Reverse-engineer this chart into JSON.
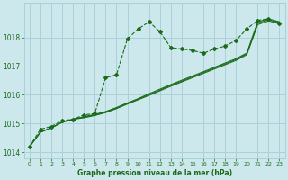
{
  "title": "Graphe pression niveau de la mer (hPa)",
  "background_color": "#cce8ed",
  "grid_color": "#a8cdd4",
  "line_color": "#1a6b1a",
  "xlim": [
    -0.5,
    23.5
  ],
  "ylim": [
    1013.8,
    1019.2
  ],
  "yticks": [
    1014,
    1015,
    1016,
    1017,
    1018
  ],
  "xticks": [
    0,
    1,
    2,
    3,
    4,
    5,
    6,
    7,
    8,
    9,
    10,
    11,
    12,
    13,
    14,
    15,
    16,
    17,
    18,
    19,
    20,
    21,
    22,
    23
  ],
  "series1_x": [
    0,
    1,
    2,
    3,
    4,
    5,
    6,
    7,
    8,
    9,
    10,
    11,
    12,
    13,
    14,
    15,
    16,
    17,
    18,
    19,
    20,
    21,
    22,
    23
  ],
  "series1_y": [
    1014.2,
    1014.8,
    1014.9,
    1015.1,
    1015.15,
    1015.3,
    1015.35,
    1016.6,
    1016.7,
    1017.95,
    1018.3,
    1018.55,
    1018.2,
    1017.65,
    1017.6,
    1017.55,
    1017.45,
    1017.6,
    1017.7,
    1017.9,
    1018.3,
    1018.6,
    1018.65,
    1018.5
  ],
  "series2_x": [
    0,
    1,
    2,
    3,
    4,
    5,
    6,
    7,
    8,
    9,
    10,
    11,
    12,
    13,
    14,
    15,
    16,
    17,
    18,
    19,
    20,
    21,
    22,
    23
  ],
  "series2_y": [
    1014.2,
    1014.7,
    1014.85,
    1015.05,
    1015.15,
    1015.2,
    1015.28,
    1015.38,
    1015.52,
    1015.68,
    1015.83,
    1015.98,
    1016.14,
    1016.3,
    1016.45,
    1016.6,
    1016.75,
    1016.9,
    1017.05,
    1017.2,
    1017.4,
    1018.45,
    1018.58,
    1018.48
  ],
  "series3_x": [
    0,
    1,
    2,
    3,
    4,
    5,
    6,
    7,
    8,
    9,
    10,
    11,
    12,
    13,
    14,
    15,
    16,
    17,
    18,
    19,
    20,
    21,
    22,
    23
  ],
  "series3_y": [
    1014.2,
    1014.7,
    1014.85,
    1015.05,
    1015.15,
    1015.22,
    1015.3,
    1015.4,
    1015.54,
    1015.7,
    1015.85,
    1016.01,
    1016.17,
    1016.33,
    1016.48,
    1016.63,
    1016.78,
    1016.93,
    1017.08,
    1017.23,
    1017.43,
    1018.5,
    1018.62,
    1018.52
  ],
  "series4_x": [
    0,
    1,
    2,
    3,
    4,
    5,
    6,
    7,
    8,
    9,
    10,
    11,
    12,
    13,
    14,
    15,
    16,
    17,
    18,
    19,
    20,
    21,
    22,
    23
  ],
  "series4_y": [
    1014.2,
    1014.7,
    1014.85,
    1015.05,
    1015.15,
    1015.24,
    1015.32,
    1015.42,
    1015.56,
    1015.72,
    1015.87,
    1016.04,
    1016.2,
    1016.36,
    1016.51,
    1016.66,
    1016.81,
    1016.96,
    1017.11,
    1017.26,
    1017.46,
    1018.55,
    1018.65,
    1018.55
  ]
}
